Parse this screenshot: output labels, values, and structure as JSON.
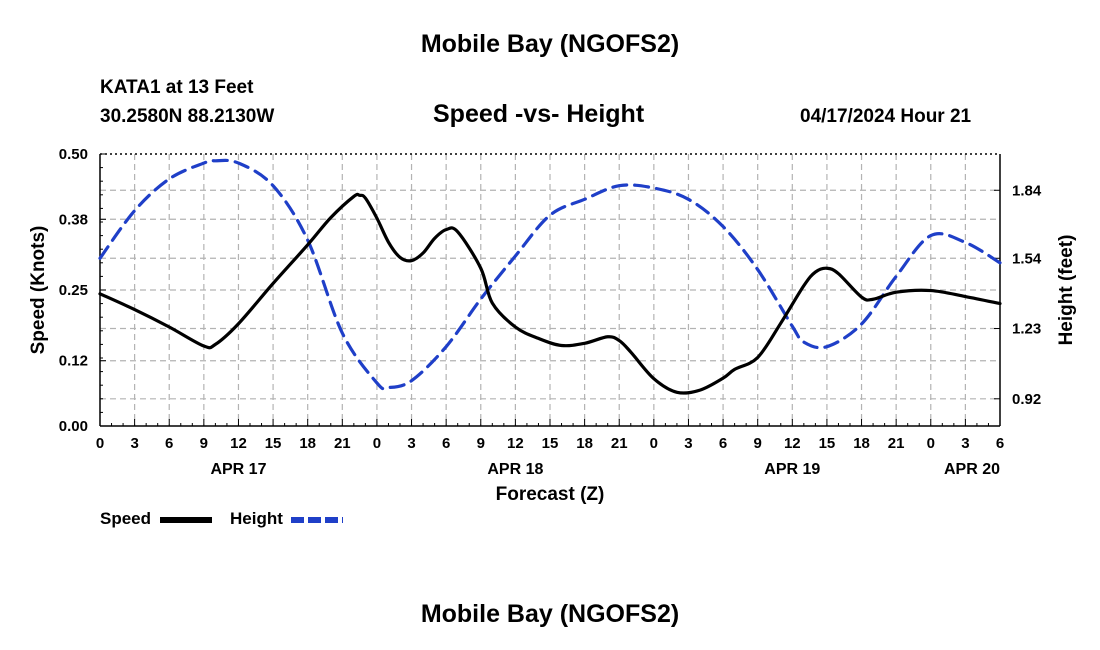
{
  "page": {
    "title_top": "Mobile Bay (NGOFS2)",
    "title_bottom": "Mobile Bay (NGOFS2)",
    "station": "KATA1 at 13 Feet",
    "coordinates": "30.2580N  88.2130W",
    "subtitle": "Speed -vs- Height",
    "datetime": "04/17/2024 Hour 21"
  },
  "chart_data": {
    "type": "line",
    "title": "Speed -vs- Height",
    "xlabel": "Forecast (Z)",
    "ylabel": "Speed (Knots)",
    "y2label": "Height (feet)",
    "xlim": [
      0,
      78
    ],
    "ylim": [
      0,
      0.5
    ],
    "y2lim": [
      0.8,
      2.0
    ],
    "grid": true,
    "x_ticks": [
      0,
      3,
      6,
      9,
      12,
      15,
      18,
      21,
      24,
      27,
      30,
      33,
      36,
      39,
      42,
      45,
      48,
      51,
      54,
      57,
      60,
      63,
      66,
      69,
      72,
      75,
      78
    ],
    "x_tick_labels": [
      "0",
      "3",
      "6",
      "9",
      "12",
      "15",
      "18",
      "21",
      "0",
      "3",
      "6",
      "9",
      "12",
      "15",
      "18",
      "21",
      "0",
      "3",
      "6",
      "9",
      "12",
      "15",
      "18",
      "21",
      "0",
      "3",
      "6"
    ],
    "date_labels": [
      {
        "x": 12,
        "label": "APR 17"
      },
      {
        "x": 36,
        "label": "APR 18"
      },
      {
        "x": 60,
        "label": "APR 19"
      },
      {
        "x": 78,
        "label": "APR 20"
      }
    ],
    "y_ticks": [
      0.0,
      0.12,
      0.25,
      0.38,
      0.5
    ],
    "y_tick_labels": [
      "0.00",
      "0.12",
      "0.25",
      "0.38",
      "0.50"
    ],
    "y2_ticks": [
      0.92,
      1.23,
      1.54,
      1.84
    ],
    "y2_tick_labels": [
      "0.92",
      "1.23",
      "1.54",
      "1.84"
    ],
    "series": [
      {
        "name": "Speed",
        "axis": "left",
        "color": "#000000",
        "dash": "solid",
        "x": [
          0,
          3,
          6,
          9,
          10,
          12,
          15,
          18,
          20,
          22,
          22.5,
          23,
          24,
          25,
          26,
          27,
          28,
          29,
          30,
          31,
          33,
          34,
          36,
          38,
          40,
          42,
          44,
          45,
          46,
          48,
          50,
          52,
          54,
          55,
          57,
          59,
          61,
          62,
          63,
          64,
          66,
          67,
          69,
          72,
          75,
          78
        ],
        "y": [
          0.243,
          0.214,
          0.182,
          0.147,
          0.15,
          0.188,
          0.262,
          0.333,
          0.383,
          0.422,
          0.424,
          0.419,
          0.382,
          0.338,
          0.31,
          0.304,
          0.318,
          0.345,
          0.361,
          0.357,
          0.29,
          0.226,
          0.182,
          0.161,
          0.148,
          0.152,
          0.164,
          0.157,
          0.136,
          0.087,
          0.062,
          0.066,
          0.088,
          0.104,
          0.126,
          0.189,
          0.258,
          0.283,
          0.29,
          0.28,
          0.237,
          0.233,
          0.246,
          0.249,
          0.238,
          0.225
        ]
      },
      {
        "name": "Height",
        "axis": "right",
        "color": "#1f3fc8",
        "dash": "dashed",
        "x": [
          0,
          3,
          6,
          9,
          10,
          12,
          15,
          18,
          21,
          24,
          25,
          27,
          30,
          33,
          36,
          39,
          42,
          45,
          48,
          51,
          54,
          57,
          60,
          61,
          63,
          66,
          69,
          72,
          75,
          78
        ],
        "y": [
          1.54,
          1.75,
          1.89,
          1.96,
          1.97,
          1.96,
          1.86,
          1.62,
          1.21,
          0.99,
          0.97,
          1.0,
          1.15,
          1.36,
          1.55,
          1.73,
          1.8,
          1.86,
          1.85,
          1.8,
          1.68,
          1.49,
          1.24,
          1.17,
          1.15,
          1.25,
          1.46,
          1.64,
          1.61,
          1.52
        ]
      }
    ],
    "legend": [
      {
        "label": "Speed",
        "color": "#000000",
        "dash": "solid"
      },
      {
        "label": "Height",
        "color": "#1f3fc8",
        "dash": "dashed"
      }
    ]
  }
}
